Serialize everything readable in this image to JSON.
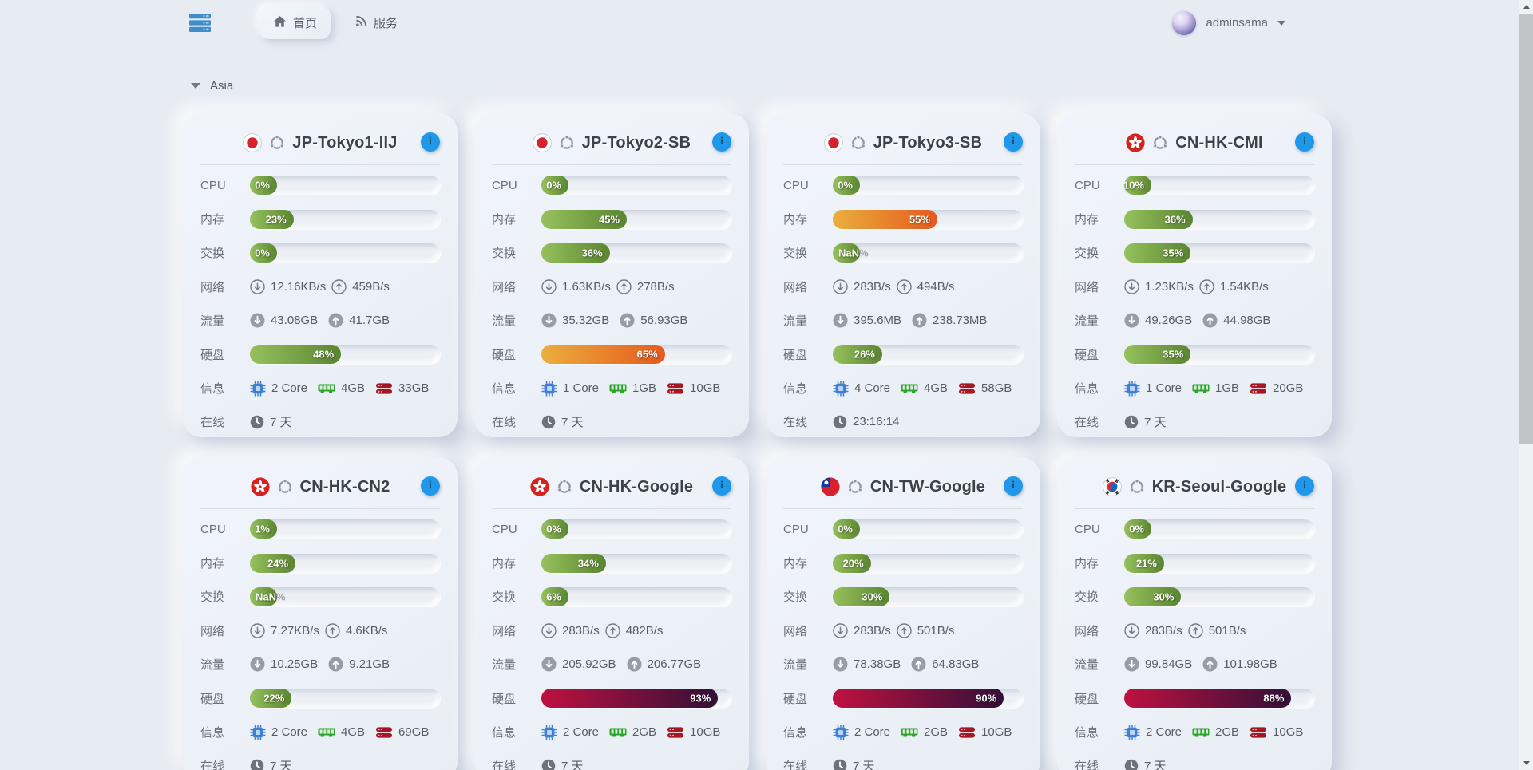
{
  "topbar": {
    "logo_icon": "server-stack-icon",
    "tabs": [
      {
        "label": "首页",
        "icon": "home-icon",
        "active": true
      },
      {
        "label": "服务",
        "icon": "rss-icon",
        "active": false
      }
    ],
    "user": {
      "name": "adminsama",
      "avatar_icon": "user-avatar",
      "caret_icon": "chevron-down-icon"
    }
  },
  "section": {
    "title": "Asia",
    "collapse_icon": "caret-down-icon"
  },
  "row_labels": {
    "cpu": "CPU",
    "mem": "内存",
    "swap": "交换",
    "net": "网络",
    "traffic": "流量",
    "disk": "硬盘",
    "info": "信息",
    "online": "在线"
  },
  "colors": {
    "bar_green": [
      "#96c15d",
      "#5a8531"
    ],
    "bar_orange": [
      "#eaaf3d",
      "#e5591d"
    ],
    "bar_red": [
      "#bf1140",
      "#321038"
    ],
    "info_button": "#1f98ea",
    "accent_blue": "#3d8ecb",
    "page_bg": "#e7ebf2"
  },
  "servers": [
    {
      "name": "JP-Tokyo1-IIJ",
      "flag": "jp",
      "os_icon": "distro-logo-icon",
      "cpu": "0%",
      "mem": "23%",
      "swap": "0%",
      "net_down": "12.16KB/s",
      "net_up": "459B/s",
      "traffic_down": "43.08GB",
      "traffic_up": "41.7GB",
      "disk": "48%",
      "cores": "2 Core",
      "ram": "4GB",
      "storage": "33GB",
      "online": "7 天"
    },
    {
      "name": "JP-Tokyo2-SB",
      "flag": "jp",
      "os_icon": "distro-logo-icon",
      "cpu": "0%",
      "mem": "45%",
      "swap": "36%",
      "net_down": "1.63KB/s",
      "net_up": "278B/s",
      "traffic_down": "35.32GB",
      "traffic_up": "56.93GB",
      "disk": "65%",
      "cores": "1 Core",
      "ram": "1GB",
      "storage": "10GB",
      "online": "7 天"
    },
    {
      "name": "JP-Tokyo3-SB",
      "flag": "jp",
      "os_icon": "distro-logo-icon",
      "cpu": "0%",
      "mem": "55%",
      "swap": "NaN%",
      "net_down": "283B/s",
      "net_up": "494B/s",
      "traffic_down": "395.6MB",
      "traffic_up": "238.73MB",
      "disk": "26%",
      "cores": "4 Core",
      "ram": "4GB",
      "storage": "58GB",
      "online": "23:16:14"
    },
    {
      "name": "CN-HK-CMI",
      "flag": "hk",
      "os_icon": "distro-logo-icon",
      "cpu": "10%",
      "mem": "36%",
      "swap": "35%",
      "net_down": "1.23KB/s",
      "net_up": "1.54KB/s",
      "traffic_down": "49.26GB",
      "traffic_up": "44.98GB",
      "disk": "35%",
      "cores": "1 Core",
      "ram": "1GB",
      "storage": "20GB",
      "online": "7 天"
    },
    {
      "name": "CN-HK-CN2",
      "flag": "hk",
      "os_icon": "distro-logo-icon",
      "cpu": "1%",
      "mem": "24%",
      "swap": "NaN%",
      "net_down": "7.27KB/s",
      "net_up": "4.6KB/s",
      "traffic_down": "10.25GB",
      "traffic_up": "9.21GB",
      "disk": "22%",
      "cores": "2 Core",
      "ram": "4GB",
      "storage": "69GB",
      "online": "7 天"
    },
    {
      "name": "CN-HK-Google",
      "flag": "hk",
      "os_icon": "distro-logo-icon",
      "cpu": "0%",
      "mem": "34%",
      "swap": "6%",
      "net_down": "283B/s",
      "net_up": "482B/s",
      "traffic_down": "205.92GB",
      "traffic_up": "206.77GB",
      "disk": "93%",
      "cores": "2 Core",
      "ram": "2GB",
      "storage": "10GB",
      "online": "7 天"
    },
    {
      "name": "CN-TW-Google",
      "flag": "tw",
      "os_icon": "distro-logo-icon",
      "cpu": "0%",
      "mem": "20%",
      "swap": "30%",
      "net_down": "283B/s",
      "net_up": "501B/s",
      "traffic_down": "78.38GB",
      "traffic_up": "64.83GB",
      "disk": "90%",
      "cores": "2 Core",
      "ram": "2GB",
      "storage": "10GB",
      "online": "7 天"
    },
    {
      "name": "KR-Seoul-Google",
      "flag": "kr",
      "os_icon": "distro-logo-icon",
      "cpu": "0%",
      "mem": "21%",
      "swap": "30%",
      "net_down": "283B/s",
      "net_up": "501B/s",
      "traffic_down": "99.84GB",
      "traffic_up": "101.98GB",
      "disk": "88%",
      "cores": "2 Core",
      "ram": "2GB",
      "storage": "10GB",
      "online": "7 天"
    }
  ]
}
